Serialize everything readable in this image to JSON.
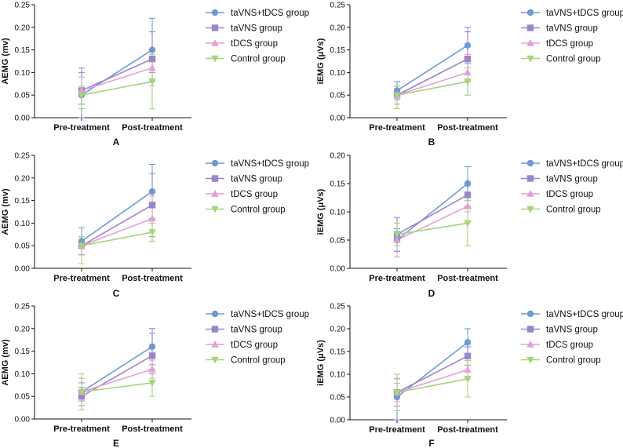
{
  "figure": {
    "legend_position": "right",
    "categories": [
      "Pre-treatment",
      "Post-treatment"
    ]
  },
  "series_styles": [
    {
      "name": "taVNS+tDCS group",
      "color": "#6e9bd1",
      "marker": "circle"
    },
    {
      "name": "taVNS group",
      "color": "#9b86c9",
      "marker": "square"
    },
    {
      "name": "tDCS group",
      "color": "#e49fd6",
      "marker": "triangle-up"
    },
    {
      "name": "Control group",
      "color": "#a6d479",
      "marker": "triangle-down"
    }
  ],
  "chart_data": [
    {
      "panel": "A",
      "type": "line",
      "ylabel": "AEMG (mv)",
      "ylim": [
        0,
        0.25
      ],
      "yticks": [
        0.0,
        0.05,
        0.1,
        0.15,
        0.2,
        0.25
      ],
      "categories": [
        "Pre-treatment",
        "Post-treatment"
      ],
      "series": [
        {
          "name": "taVNS+tDCS group",
          "values": [
            0.05,
            0.15
          ],
          "err_low": [
            0.0,
            0.08
          ],
          "err_high": [
            0.1,
            0.22
          ]
        },
        {
          "name": "taVNS group",
          "values": [
            0.06,
            0.13
          ],
          "err_low": [
            0.03,
            0.1
          ],
          "err_high": [
            0.11,
            0.19
          ]
        },
        {
          "name": "tDCS group",
          "values": [
            0.06,
            0.11
          ],
          "err_low": [
            0.02,
            0.07
          ],
          "err_high": [
            0.09,
            0.15
          ]
        },
        {
          "name": "Control group",
          "values": [
            0.05,
            0.08
          ],
          "err_low": [
            0.02,
            0.02
          ],
          "err_high": [
            0.07,
            0.14
          ]
        }
      ]
    },
    {
      "panel": "B",
      "type": "line",
      "ylabel": "iEMG (μVs)",
      "ylim": [
        0,
        0.25
      ],
      "yticks": [
        0.0,
        0.05,
        0.1,
        0.15,
        0.2,
        0.25
      ],
      "categories": [
        "Pre-treatment",
        "Post-treatment"
      ],
      "series": [
        {
          "name": "taVNS+tDCS group",
          "values": [
            0.06,
            0.16
          ],
          "err_low": [
            0.04,
            0.12
          ],
          "err_high": [
            0.08,
            0.2
          ]
        },
        {
          "name": "taVNS group",
          "values": [
            0.05,
            0.13
          ],
          "err_low": [
            0.03,
            0.08
          ],
          "err_high": [
            0.07,
            0.19
          ]
        },
        {
          "name": "tDCS group",
          "values": [
            0.05,
            0.1
          ],
          "err_low": [
            0.03,
            0.05
          ],
          "err_high": [
            0.07,
            0.14
          ]
        },
        {
          "name": "Control group",
          "values": [
            0.05,
            0.08
          ],
          "err_low": [
            0.02,
            0.05
          ],
          "err_high": [
            0.07,
            0.11
          ]
        }
      ]
    },
    {
      "panel": "C",
      "type": "line",
      "ylabel": "AEMG (mv)",
      "ylim": [
        0,
        0.25
      ],
      "yticks": [
        0.0,
        0.05,
        0.1,
        0.15,
        0.2,
        0.25
      ],
      "categories": [
        "Pre-treatment",
        "Post-treatment"
      ],
      "series": [
        {
          "name": "taVNS+tDCS group",
          "values": [
            0.06,
            0.17
          ],
          "err_low": [
            0.03,
            0.11
          ],
          "err_high": [
            0.09,
            0.23
          ]
        },
        {
          "name": "taVNS group",
          "values": [
            0.05,
            0.14
          ],
          "err_low": [
            0.03,
            0.07
          ],
          "err_high": [
            0.07,
            0.21
          ]
        },
        {
          "name": "tDCS group",
          "values": [
            0.05,
            0.11
          ],
          "err_low": [
            0.03,
            0.06
          ],
          "err_high": [
            0.07,
            0.16
          ]
        },
        {
          "name": "Control group",
          "values": [
            0.05,
            0.08
          ],
          "err_low": [
            0.01,
            0.06
          ],
          "err_high": [
            0.07,
            0.1
          ]
        }
      ]
    },
    {
      "panel": "D",
      "type": "line",
      "ylabel": "iEMG (μVs)",
      "ylim": [
        0,
        0.2
      ],
      "yticks": [
        0.0,
        0.05,
        0.1,
        0.15,
        0.2
      ],
      "categories": [
        "Pre-treatment",
        "Post-treatment"
      ],
      "series": [
        {
          "name": "taVNS+tDCS group",
          "values": [
            0.05,
            0.15
          ],
          "err_low": [
            0.03,
            0.12
          ],
          "err_high": [
            0.07,
            0.18
          ]
        },
        {
          "name": "taVNS group",
          "values": [
            0.06,
            0.13
          ],
          "err_low": [
            0.03,
            0.11
          ],
          "err_high": [
            0.09,
            0.15
          ]
        },
        {
          "name": "tDCS group",
          "values": [
            0.05,
            0.11
          ],
          "err_low": [
            0.02,
            0.1
          ],
          "err_high": [
            0.08,
            0.12
          ]
        },
        {
          "name": "Control group",
          "values": [
            0.06,
            0.08
          ],
          "err_low": [
            0.04,
            0.04
          ],
          "err_high": [
            0.08,
            0.12
          ]
        }
      ]
    },
    {
      "panel": "E",
      "type": "line",
      "ylabel": "AEMG (mv)",
      "ylim": [
        0,
        0.25
      ],
      "yticks": [
        0.0,
        0.05,
        0.1,
        0.15,
        0.2,
        0.25
      ],
      "categories": [
        "Pre-treatment",
        "Post-treatment"
      ],
      "series": [
        {
          "name": "taVNS+tDCS group",
          "values": [
            0.06,
            0.16
          ],
          "err_low": [
            0.04,
            0.12
          ],
          "err_high": [
            0.08,
            0.2
          ]
        },
        {
          "name": "taVNS group",
          "values": [
            0.05,
            0.14
          ],
          "err_low": [
            0.03,
            0.1
          ],
          "err_high": [
            0.07,
            0.19
          ]
        },
        {
          "name": "tDCS group",
          "values": [
            0.06,
            0.11
          ],
          "err_low": [
            0.03,
            0.09
          ],
          "err_high": [
            0.09,
            0.13
          ]
        },
        {
          "name": "Control group",
          "values": [
            0.06,
            0.08
          ],
          "err_low": [
            0.02,
            0.05
          ],
          "err_high": [
            0.1,
            0.11
          ]
        }
      ]
    },
    {
      "panel": "F",
      "type": "line",
      "ylabel": "iEMG (μVs)",
      "ylim": [
        0,
        0.25
      ],
      "yticks": [
        0.0,
        0.05,
        0.1,
        0.15,
        0.2,
        0.25
      ],
      "categories": [
        "Pre-treatment",
        "Post-treatment"
      ],
      "series": [
        {
          "name": "taVNS+tDCS group",
          "values": [
            0.05,
            0.17
          ],
          "err_low": [
            0.0,
            0.14
          ],
          "err_high": [
            0.1,
            0.2
          ]
        },
        {
          "name": "taVNS group",
          "values": [
            0.06,
            0.14
          ],
          "err_low": [
            0.03,
            0.12
          ],
          "err_high": [
            0.09,
            0.16
          ]
        },
        {
          "name": "tDCS group",
          "values": [
            0.06,
            0.11
          ],
          "err_low": [
            0.04,
            0.09
          ],
          "err_high": [
            0.08,
            0.13
          ]
        },
        {
          "name": "Control group",
          "values": [
            0.06,
            0.09
          ],
          "err_low": [
            0.02,
            0.05
          ],
          "err_high": [
            0.1,
            0.13
          ]
        }
      ]
    }
  ]
}
